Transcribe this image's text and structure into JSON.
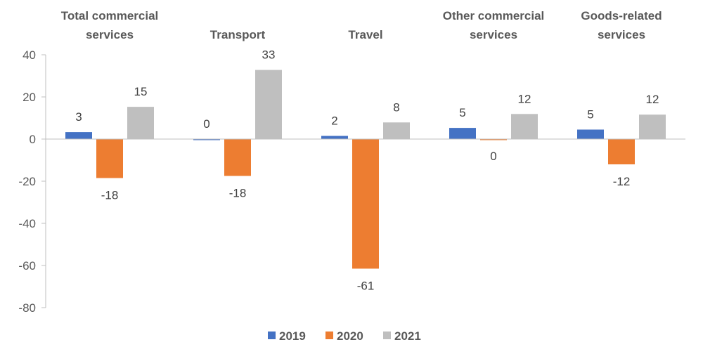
{
  "chart_data": {
    "type": "bar",
    "title": "",
    "xlabel": "",
    "ylabel": "",
    "ylim": [
      -80,
      40
    ],
    "yticks": [
      40,
      20,
      0,
      -20,
      -40,
      -60,
      -80
    ],
    "grid": false,
    "legend_position": "bottom",
    "categories": [
      [
        "Total commercial",
        "services"
      ],
      [
        "Transport"
      ],
      [
        "Travel"
      ],
      [
        "Other commercial",
        "services"
      ],
      [
        "Goods-related",
        "services"
      ]
    ],
    "series": [
      {
        "name": "2019",
        "color": "#4472C4",
        "values": [
          3.3,
          0.0,
          1.5,
          5.3,
          4.5
        ],
        "labels": [
          "3",
          "0",
          "2",
          "5",
          "5"
        ]
      },
      {
        "name": "2020",
        "color": "#ED7D31",
        "values": [
          -18.5,
          -17.5,
          -61.5,
          -0.5,
          -12.0
        ],
        "labels": [
          "-18",
          "-18",
          "-61",
          "0",
          "-12"
        ]
      },
      {
        "name": "2021",
        "color": "#BFBFBF",
        "values": [
          15.3,
          32.8,
          7.9,
          11.9,
          11.6
        ],
        "labels": [
          "15",
          "33",
          "8",
          "12",
          "12"
        ]
      }
    ]
  }
}
